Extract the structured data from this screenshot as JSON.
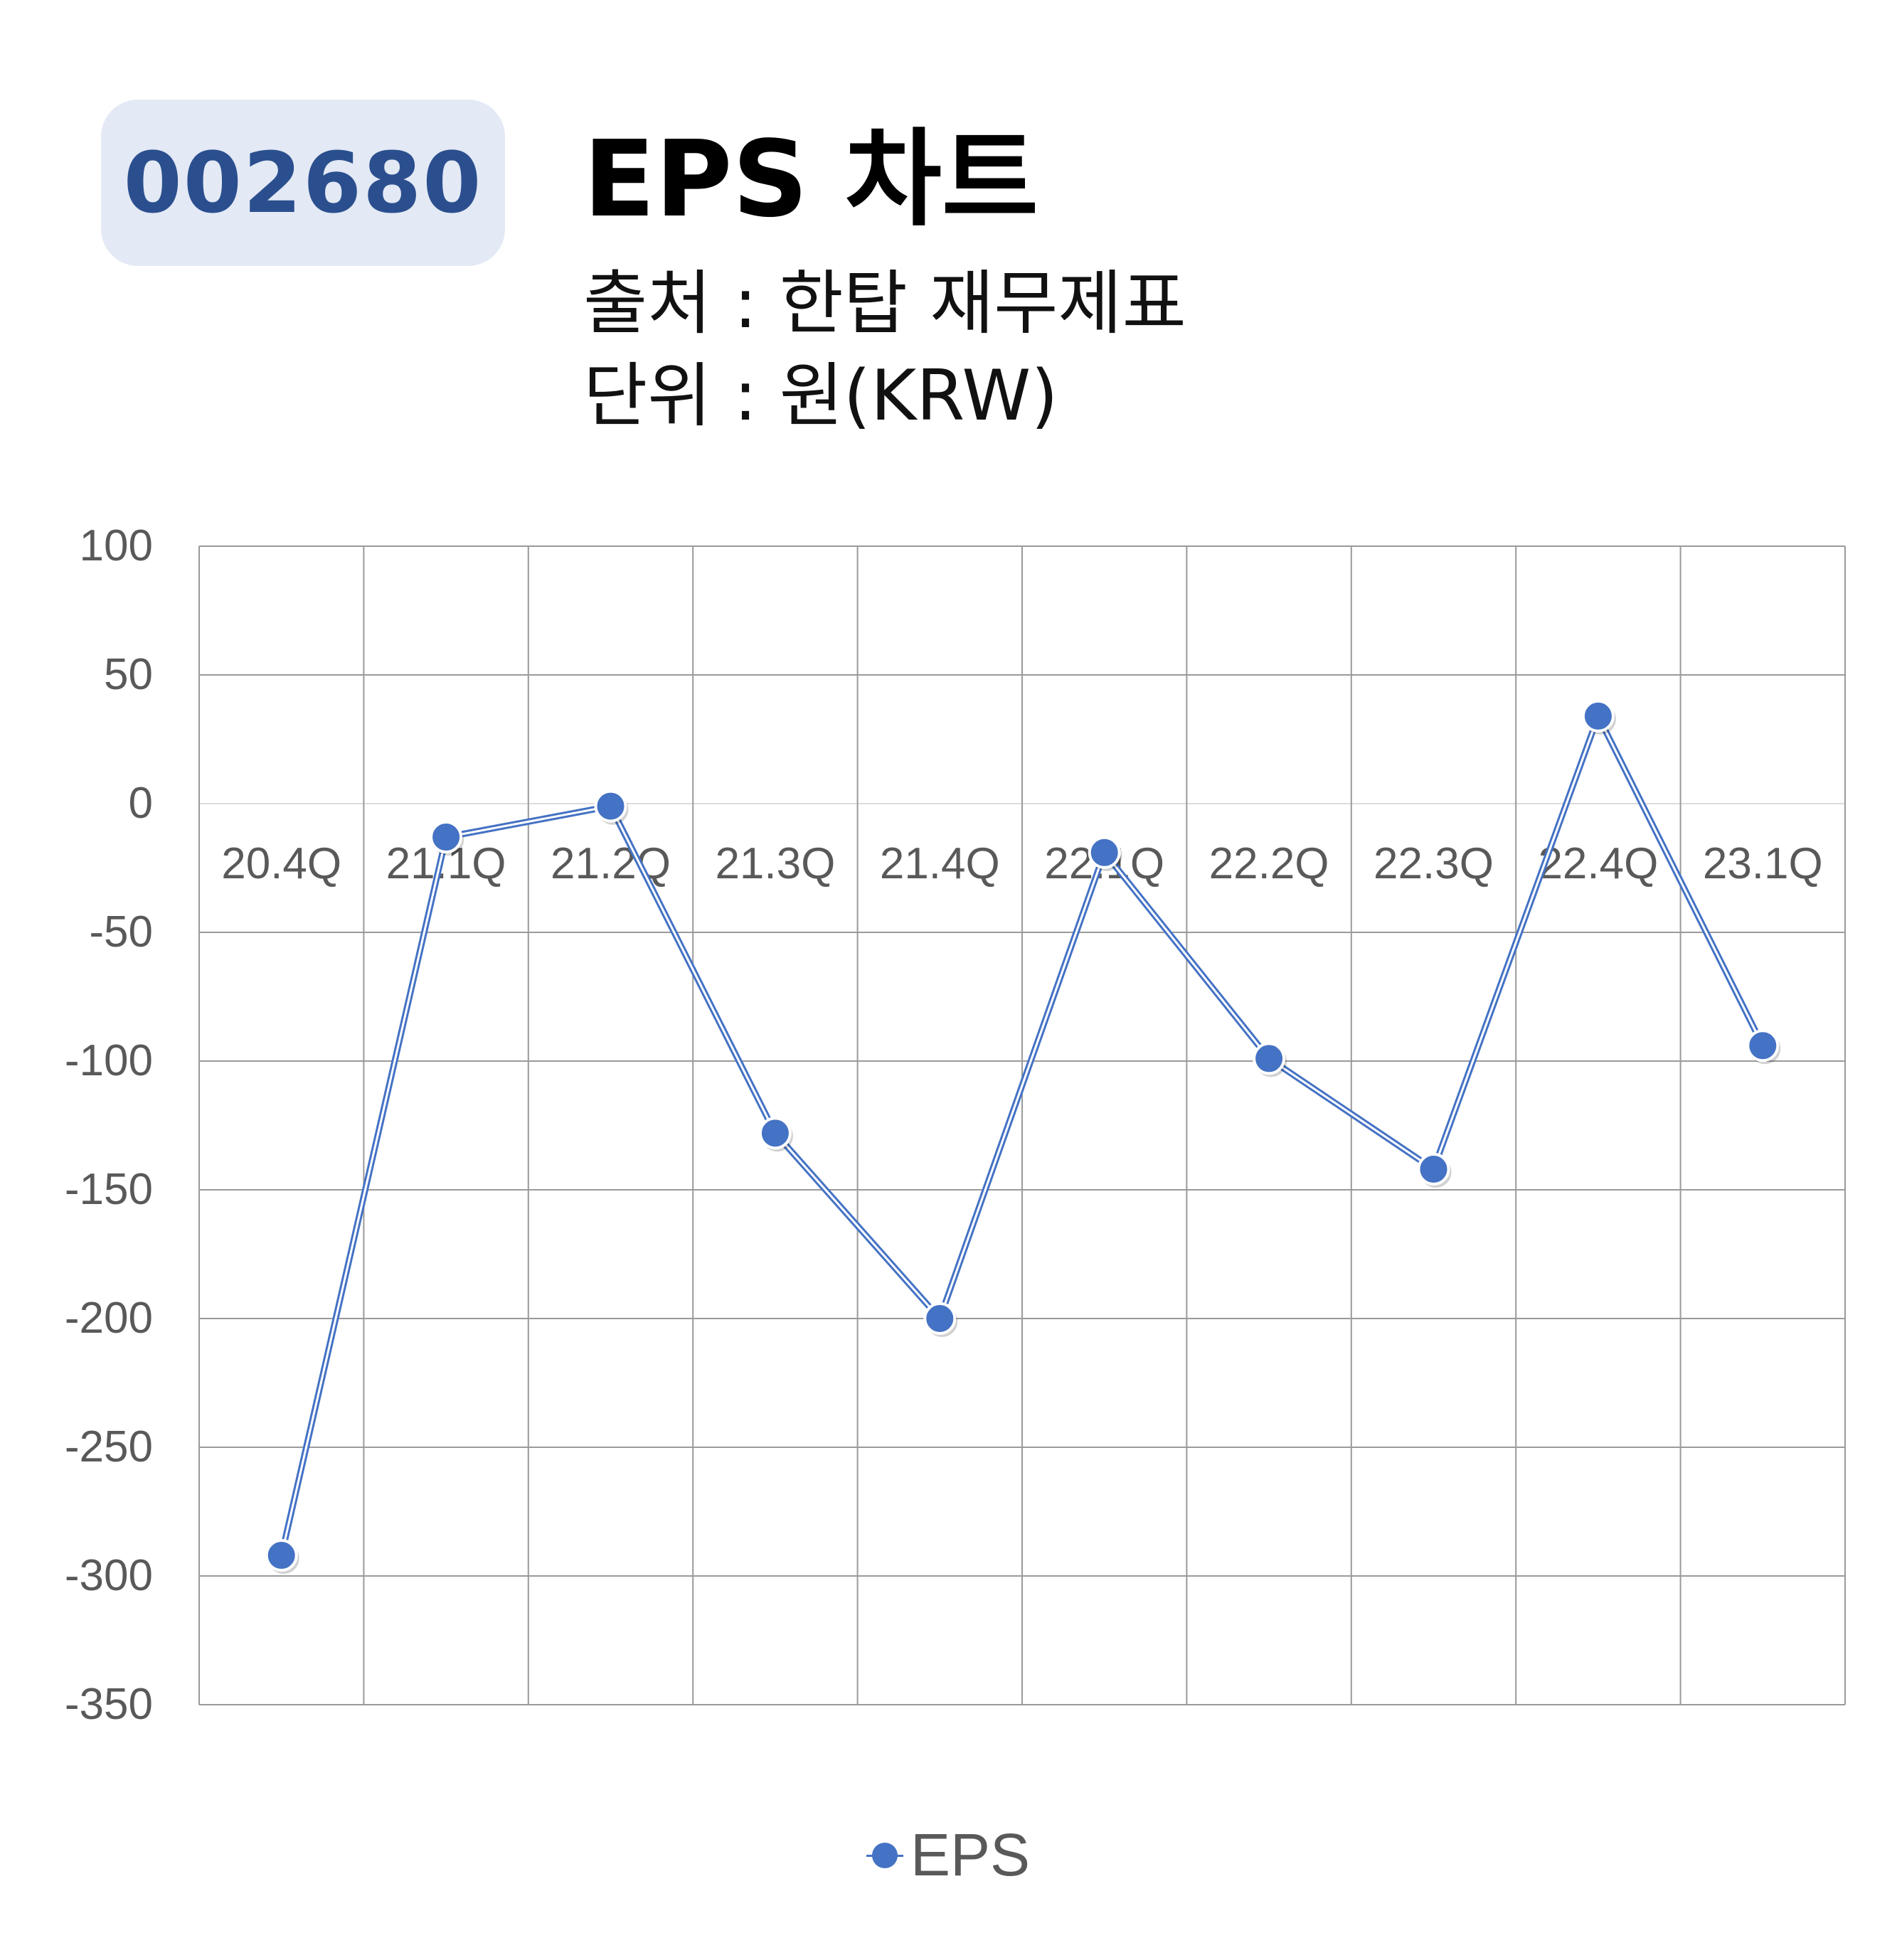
{
  "header": {
    "code": "002680",
    "title": "EPS 차트",
    "source": "출처 : 한탑 재무제표",
    "unit": "단위 : 원(KRW)"
  },
  "chart_data": {
    "type": "line",
    "categories": [
      "20.4Q",
      "21.1Q",
      "21.2Q",
      "21.3Q",
      "21.4Q",
      "22.1Q",
      "22.2Q",
      "22.3Q",
      "22.4Q",
      "23.1Q"
    ],
    "series": [
      {
        "name": "EPS",
        "values": [
          -292,
          -13,
          -1,
          -128,
          -200,
          -19,
          -99,
          -142,
          34,
          -94
        ]
      }
    ],
    "y_ticks": [
      100,
      50,
      0,
      -50,
      -100,
      -150,
      -200,
      -250,
      -300,
      -350
    ],
    "ylim": [
      -350,
      100
    ],
    "grid": true,
    "legend_position": "bottom",
    "series_color": "#4472c4"
  }
}
